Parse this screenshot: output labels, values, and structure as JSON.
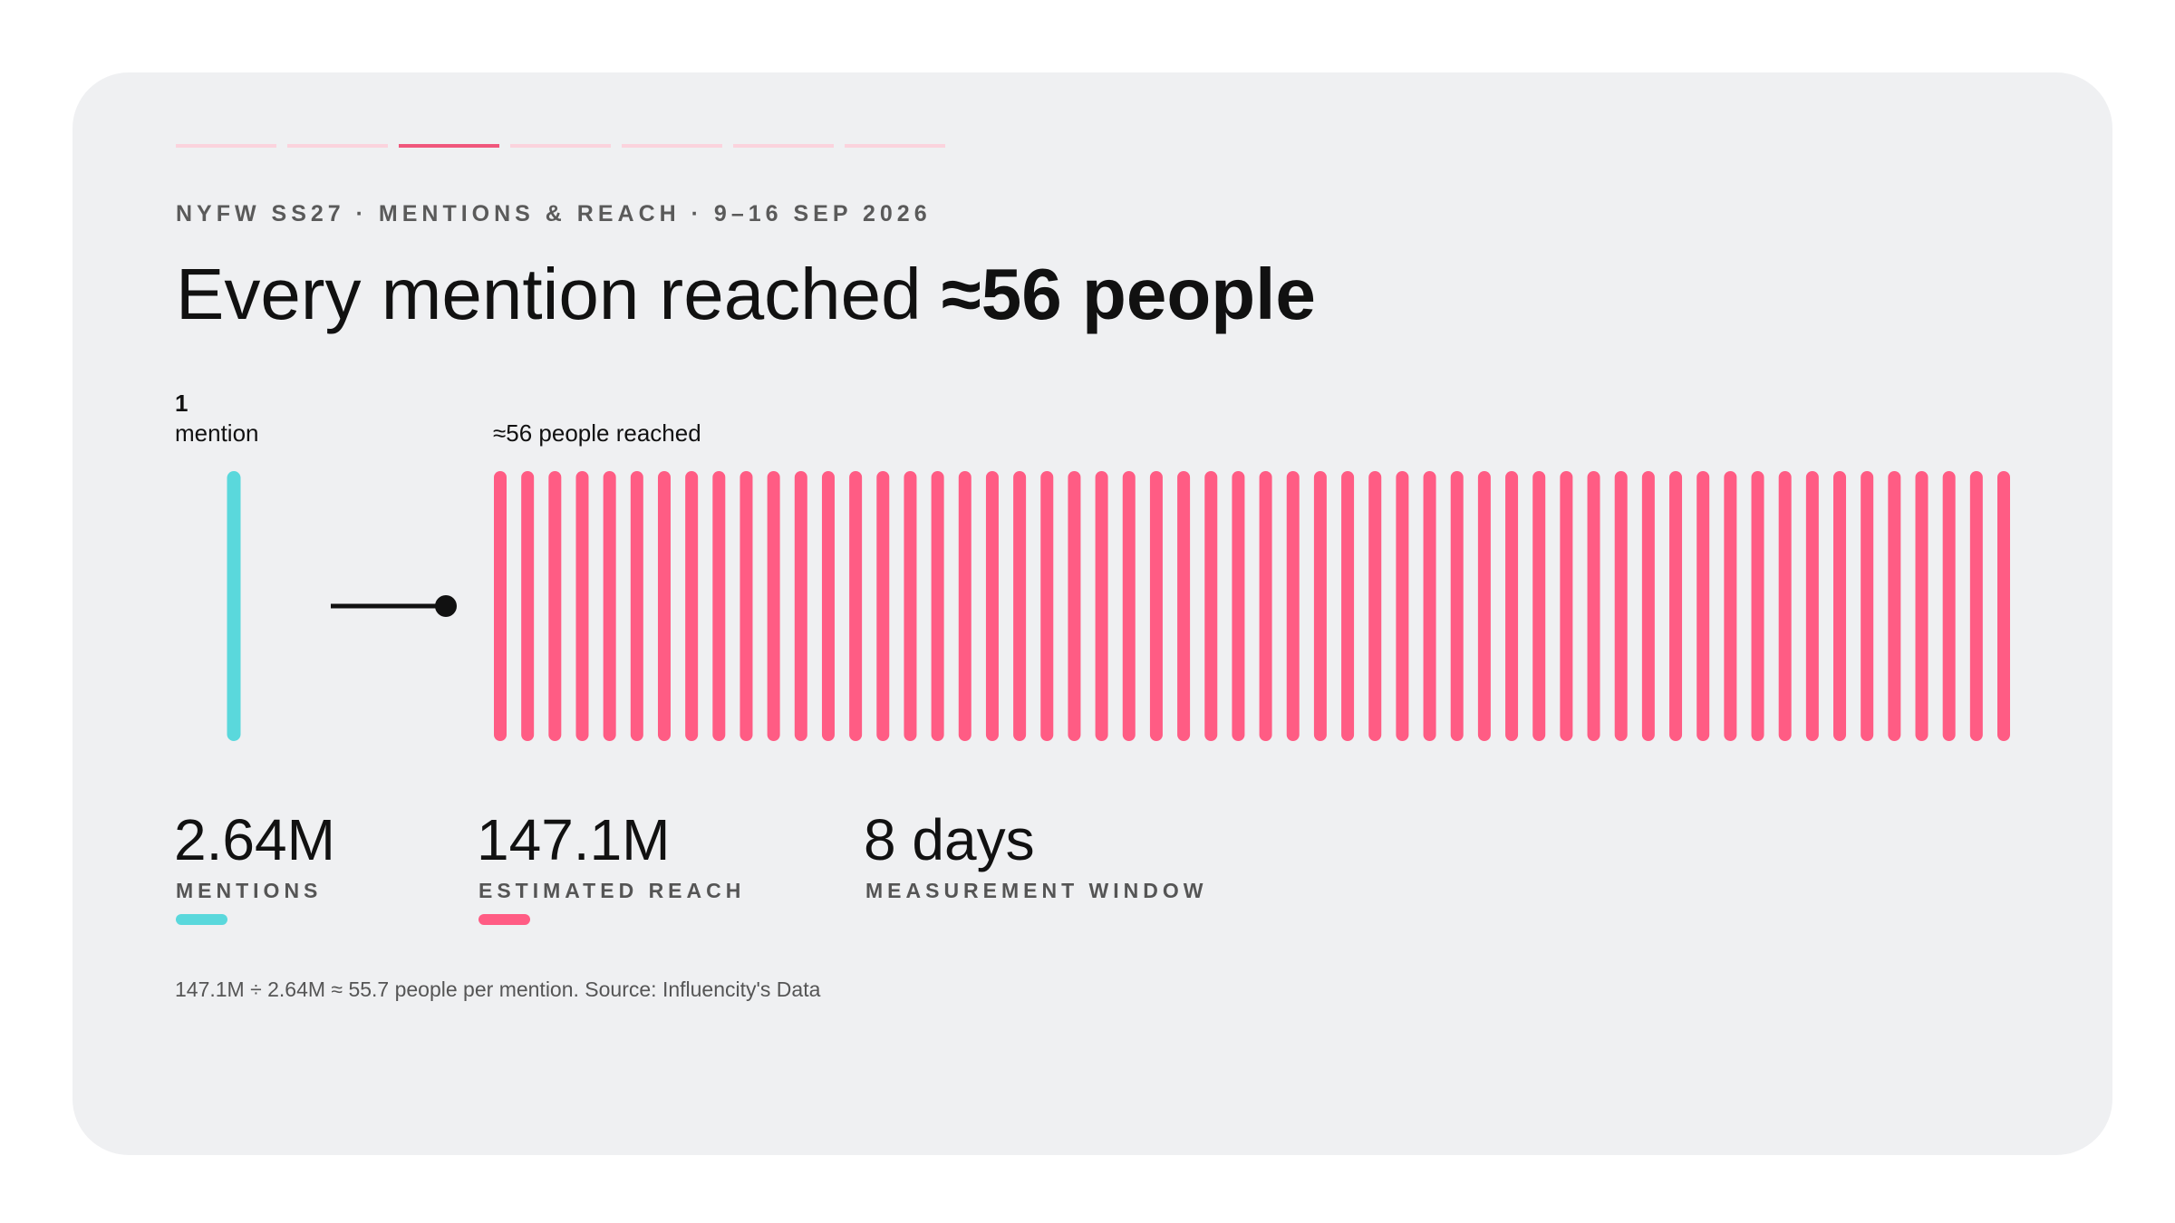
{
  "header": {
    "eyebrow": "NYFW SS27 · MENTIONS & REACH · 9–16 SEP 2026",
    "title_lead": "Every mention reached ",
    "title_emphasis": "≈56 people"
  },
  "pictogram": {
    "mention_count": 1,
    "mention_label": "mention",
    "mention_color": "#5ad8dc",
    "reach_label": "≈56 people reached",
    "reach_units": 56,
    "reach_color": "#ff5c84"
  },
  "stats": [
    {
      "value": "2.64M",
      "label": "MENTIONS",
      "color": "#5ad8dc"
    },
    {
      "value": "147.1M",
      "label": "ESTIMATED REACH",
      "color": "#ff5c84"
    },
    {
      "value": "8 days",
      "label": "MEASUREMENT WINDOW"
    }
  ],
  "footnote": "147.1M ÷ 2.64M ≈ 55.7 people per mention. Source: Influencity's Data"
}
